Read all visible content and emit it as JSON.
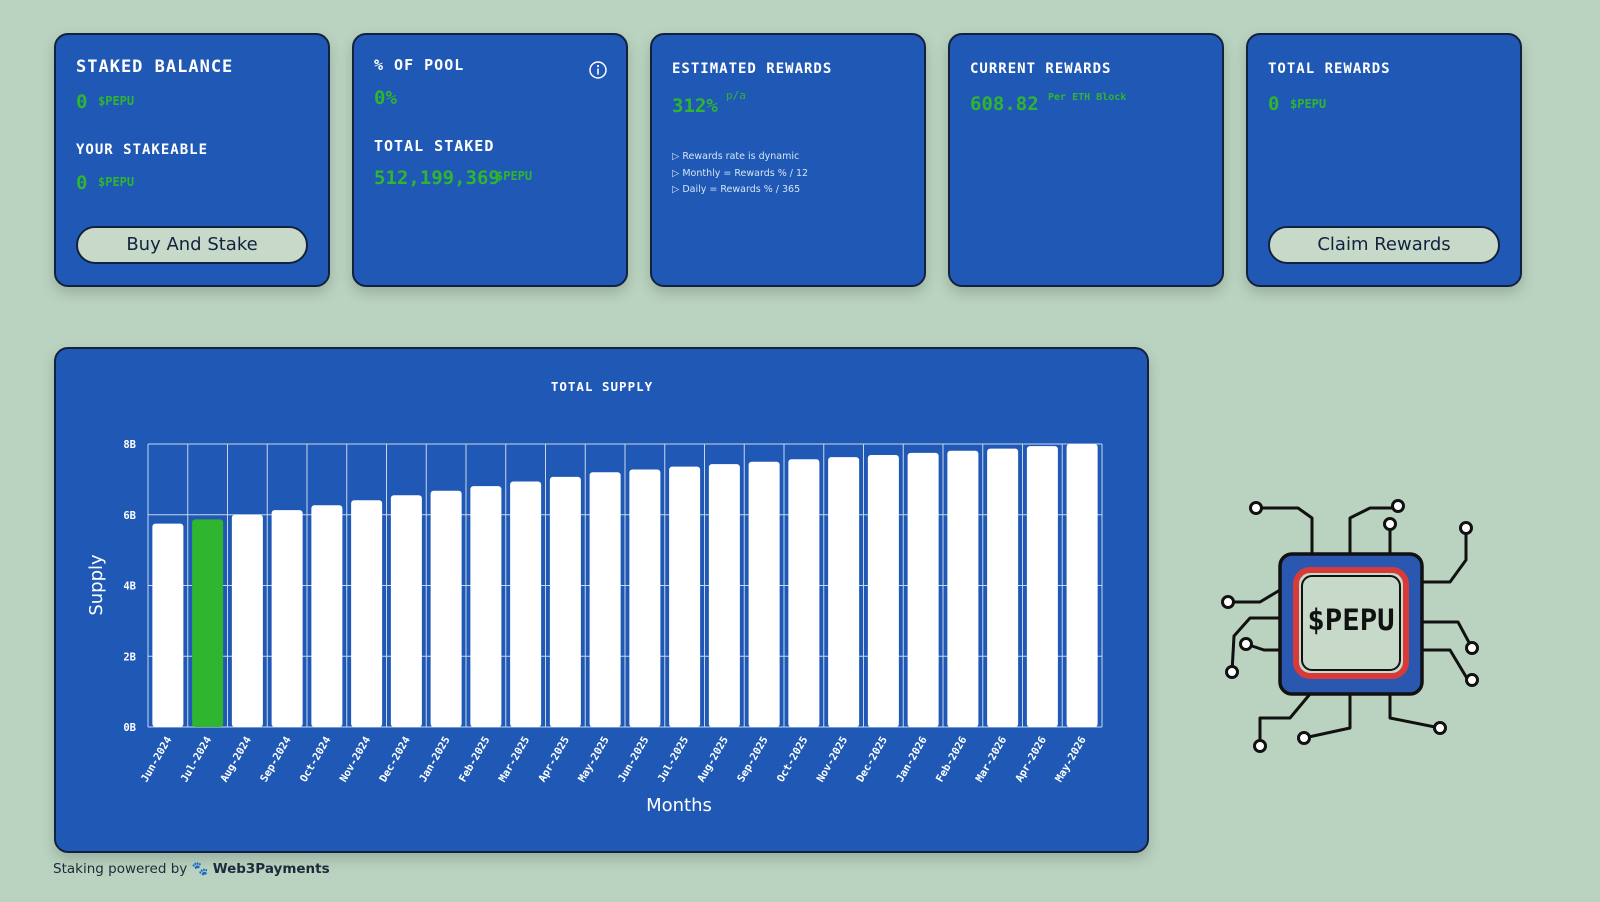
{
  "cards": {
    "staked_balance": {
      "label": "STAKED BALANCE",
      "value": "0",
      "unit": "$PEPU",
      "stakeable_label": "YOUR STAKEABLE",
      "stakeable_value": "0",
      "stakeable_unit": "$PEPU",
      "button": "Buy And Stake"
    },
    "pool": {
      "label": "% OF POOL",
      "value": "0%",
      "info_icon": "info-icon",
      "total_staked_label": "TOTAL STAKED",
      "total_staked_value": "512,199,369",
      "total_staked_unit": "$PEPU"
    },
    "estimated": {
      "label": "ESTIMATED REWARDS",
      "value": "312%",
      "unit": "p/a",
      "notes": [
        "Rewards rate is dynamic",
        "Monthly = Rewards % / 12",
        "Daily = Rewards % / 365"
      ]
    },
    "current": {
      "label": "CURRENT REWARDS",
      "value": "608.82",
      "unit": "Per ETH Block"
    },
    "total": {
      "label": "TOTAL REWARDS",
      "value": "0",
      "unit": "$PEPU",
      "button": "Claim Rewards"
    }
  },
  "chart_data": {
    "type": "bar",
    "title": "TOTAL SUPPLY",
    "xlabel": "Months",
    "ylabel": "Supply",
    "ylim": [
      0,
      8
    ],
    "yticks": [
      "0B",
      "2B",
      "4B",
      "6B",
      "8B"
    ],
    "categories": [
      "Jun-2024",
      "Jul-2024",
      "Aug-2024",
      "Sep-2024",
      "Oct-2024",
      "Nov-2024",
      "Dec-2024",
      "Jan-2025",
      "Feb-2025",
      "Mar-2025",
      "Apr-2025",
      "May-2025",
      "Jun-2025",
      "Jul-2025",
      "Aug-2025",
      "Sep-2025",
      "Oct-2025",
      "Nov-2025",
      "Dec-2025",
      "Jan-2026",
      "Feb-2026",
      "Mar-2026",
      "Apr-2026",
      "May-2026"
    ],
    "values": [
      5.75,
      5.87,
      6.0,
      6.13,
      6.27,
      6.41,
      6.55,
      6.68,
      6.81,
      6.94,
      7.07,
      7.2,
      7.28,
      7.36,
      7.43,
      7.5,
      7.57,
      7.63,
      7.69,
      7.75,
      7.81,
      7.87,
      7.94,
      8.0
    ],
    "highlight_index": 1,
    "colors": {
      "bar": "#ffffff",
      "highlight": "#2fb52f",
      "grid": "#c9d6ea"
    }
  },
  "logo": {
    "text": "$PEPU"
  },
  "footer": {
    "prefix": "Staking powered by",
    "brand": "Web3Payments"
  }
}
